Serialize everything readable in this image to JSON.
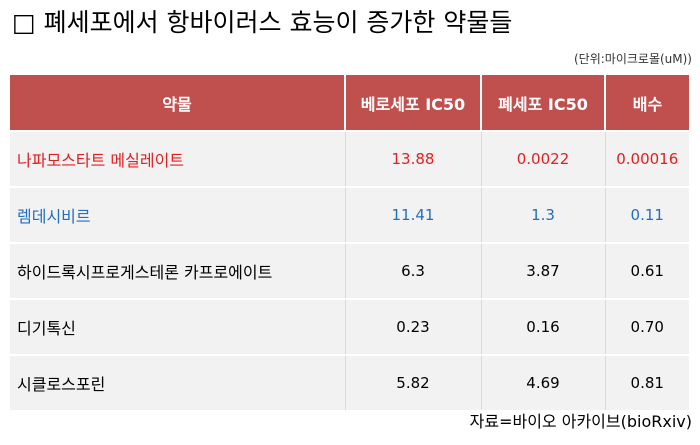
{
  "title": "□ 폐세포에서 항바이러스 효능이 증가한 약물들",
  "unit_note": "(단위:마이크로몰(uM))",
  "table": {
    "headers": [
      "약물",
      "베로세포 IC50",
      "폐세포 IC50",
      "배수"
    ],
    "rows": [
      {
        "drug": "나파모스타트 메실레이트",
        "vero": "13.88",
        "lung": "0.0022",
        "ratio": "0.00016",
        "color": "#e02020"
      },
      {
        "drug": "렘데시비르",
        "vero": "11.41",
        "lung": "1.3",
        "ratio": "0.11",
        "color": "#1f6fc0"
      },
      {
        "drug": "하이드록시프로게스테론 카프로에이트",
        "vero": "6.3",
        "lung": "3.87",
        "ratio": "0.61",
        "color": "#000000"
      },
      {
        "drug": "디기톡신",
        "vero": "0.23",
        "lung": "0.16",
        "ratio": "0.70",
        "color": "#000000"
      },
      {
        "drug": "시클로스포린",
        "vero": "5.82",
        "lung": "4.69",
        "ratio": "0.81",
        "color": "#000000"
      }
    ]
  },
  "source": "자료=바이오 아카이브(bioRxiv)",
  "colors": {
    "header_bg": "#c0504d",
    "row_bg": "#f2f2f2"
  }
}
